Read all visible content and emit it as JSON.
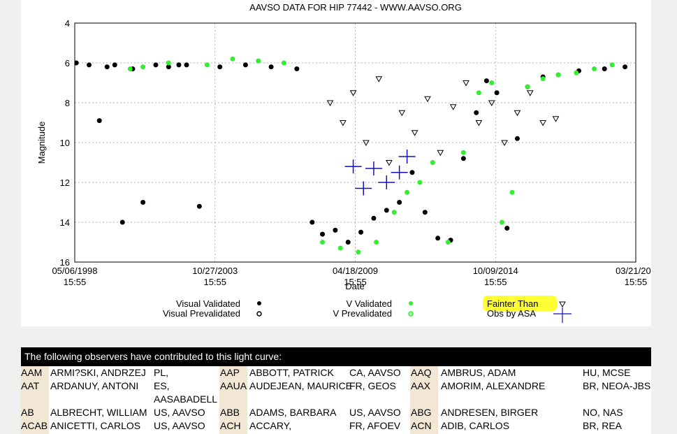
{
  "chart_data": {
    "type": "scatter",
    "title": "AAVSO DATA FOR HIP 77442 - WWW.AAVSO.ORG",
    "xlabel": "Date",
    "ylabel": "Magnitude",
    "y_reversed": true,
    "ylim": [
      16,
      4
    ],
    "y_ticks": [
      "4",
      "6",
      "8",
      "10",
      "12",
      "14",
      "16"
    ],
    "x_ticks": [
      {
        "line1": "05/06/1998",
        "line2": "15:55"
      },
      {
        "line1": "10/27/2003",
        "line2": "15:55"
      },
      {
        "line1": "04/18/2009",
        "line2": "15:55"
      },
      {
        "line1": "10/09/2014",
        "line2": "15:55"
      },
      {
        "line1": "03/21/202",
        "line2": "15:55"
      }
    ],
    "x_range_years": [
      1998.34,
      2020.22
    ],
    "grid": true,
    "legend": [
      {
        "label": "Visual Validated",
        "marker": "filled-black-dot"
      },
      {
        "label": "Visual Prevalidated",
        "marker": "hatched-black-dot"
      },
      {
        "label": "V Validated",
        "marker": "filled-green-dot"
      },
      {
        "label": "V Prevalidated",
        "marker": "hatched-green-dot"
      },
      {
        "label": "Fainter Than",
        "marker": "open-triangle",
        "highlighted": true
      },
      {
        "label": "Obs by ASA",
        "marker": "blue-cross",
        "highlighted": true
      }
    ],
    "series": [
      {
        "name": "Visual Validated",
        "color": "#000000",
        "x": [
          1998.4,
          1998.9,
          1999.3,
          1999.6,
          1999.9,
          2000.2,
          2000.6,
          2001.0,
          2001.5,
          2002.0,
          2002.4,
          2002.7,
          2003.2,
          2004.0,
          2005.0,
          2006.0,
          2007.0,
          2007.6,
          2008.0,
          2008.5,
          2009.0,
          2009.5,
          2010.0,
          2010.5,
          2011.0,
          2011.5,
          2012.0,
          2012.5,
          2013.0,
          2013.5,
          2014.0,
          2014.4,
          2014.8,
          2015.2,
          2015.6,
          2016.0,
          2016.6,
          2017.2,
          2018.0,
          2019.0,
          2019.8
        ],
        "y": [
          6.0,
          6.1,
          8.9,
          6.2,
          6.1,
          14.0,
          6.3,
          13.0,
          6.1,
          6.2,
          6.1,
          6.1,
          13.2,
          6.2,
          6.1,
          6.2,
          6.3,
          14.0,
          14.6,
          14.4,
          15.0,
          14.5,
          13.8,
          13.4,
          13.0,
          11.5,
          13.5,
          14.8,
          14.9,
          10.8,
          8.5,
          6.9,
          7.5,
          14.3,
          9.8,
          7.2,
          6.7,
          6.6,
          6.4,
          6.3,
          6.2
        ]
      },
      {
        "name": "V Validated",
        "color": "#33ee33",
        "x": [
          2000.5,
          2001.0,
          2002.0,
          2003.5,
          2004.5,
          2005.5,
          2006.5,
          2008.0,
          2008.7,
          2009.4,
          2010.1,
          2010.8,
          2011.3,
          2011.8,
          2012.3,
          2012.9,
          2013.5,
          2014.1,
          2014.6,
          2015.0,
          2015.4,
          2016.0,
          2016.6,
          2017.2,
          2017.9,
          2018.6,
          2019.3
        ],
        "y": [
          6.3,
          6.2,
          6.0,
          6.1,
          5.8,
          5.9,
          6.0,
          15.0,
          15.3,
          15.5,
          15.0,
          13.5,
          12.5,
          12.0,
          11.0,
          15.0,
          10.5,
          7.5,
          7.0,
          14.0,
          12.5,
          7.2,
          6.8,
          6.6,
          6.5,
          6.3,
          6.1
        ]
      },
      {
        "name": "Fainter Than",
        "color": "#000000",
        "x": [
          2008.3,
          2008.8,
          2009.2,
          2009.7,
          2010.2,
          2010.6,
          2011.1,
          2011.6,
          2012.1,
          2012.6,
          2013.1,
          2013.6,
          2014.1,
          2014.6,
          2015.1,
          2015.6,
          2016.1,
          2016.6,
          2017.1
        ],
        "y": [
          8.0,
          9.0,
          7.5,
          10.0,
          6.8,
          11.0,
          8.5,
          9.5,
          7.8,
          10.5,
          8.2,
          7.0,
          9.0,
          8.0,
          10.0,
          8.5,
          7.5,
          9.0,
          8.8
        ]
      },
      {
        "name": "Obs by ASA",
        "color": "#1111bb",
        "x": [
          2009.2,
          2009.6,
          2010.0,
          2010.5,
          2011.0,
          2011.3
        ],
        "y": [
          11.2,
          12.3,
          11.3,
          12.0,
          11.5,
          10.7
        ]
      }
    ]
  },
  "observers": {
    "header": "The following observers have contributed to this light curve:",
    "rows": [
      [
        {
          "code": "AAM",
          "name": "ARMI?SKI, ANDRZEJ",
          "affil": "PL,"
        },
        {
          "code": "AAP",
          "name": "ABBOTT, PATRICK",
          "affil": "CA, AAVSO"
        },
        {
          "code": "AAQ",
          "name": "AMBRUS, ADAM",
          "affil": "HU, MCSE"
        }
      ],
      [
        {
          "code": "AAT",
          "name": "ARDANUY, ANTONI",
          "affil": "ES,",
          "affil2": "AASABADELL"
        },
        {
          "code": "AAUA",
          "name": "AUDEJEAN, MAURICE",
          "affil": "FR, GEOS"
        },
        {
          "code": "AAX",
          "name": "AMORIM, ALEXANDRE",
          "affil": "BR, NEOA-JBS"
        }
      ],
      [
        {
          "code": "AB",
          "name": "ALBRECHT, WILLIAM",
          "affil": "US, AAVSO"
        },
        {
          "code": "ABB",
          "name": "ADAMS, BARBARA",
          "affil": "US, AAVSO"
        },
        {
          "code": "ABG",
          "name": "ANDRESEN, BIRGER",
          "affil": "NO, NAS"
        }
      ],
      [
        {
          "code": "ACAB",
          "name": "ANICETTI, CARLOS",
          "affil": "US, AAVSO"
        },
        {
          "code": "ACH",
          "name": "ACCARY,",
          "affil": "FR, AFOEV"
        },
        {
          "code": "ACN",
          "name": "ADIB, CARLOS",
          "affil": "BR, REA"
        }
      ]
    ]
  },
  "colors": {
    "visual": "#000000",
    "v_band": "#33ee33",
    "asa": "#1111bb",
    "highlight": "#ffff33",
    "code_bg": "#f1e7d4"
  }
}
